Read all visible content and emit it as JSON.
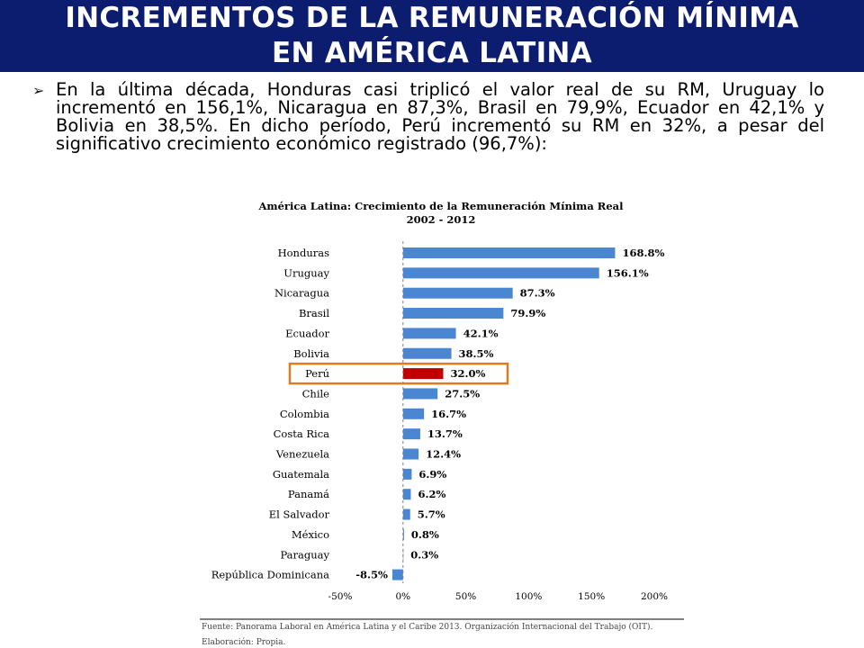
{
  "slide": {
    "title_line1": "INCREMENTOS DE LA REMUNERACIÓN MÍNIMA",
    "title_line2": "EN AMÉRICA LATINA",
    "bullet_icon": "arrow-bullet-icon",
    "bullet_text": "En la última década, Honduras casi triplicó el valor real de su RM, Uruguay lo incrementó en 156,1%, Nicaragua en 87,3%,  Brasil en 79,9%, Ecuador en 42,1% y Bolivia en 38,5%. En dicho período, Perú incrementó su RM en 32%, a pesar del significativo crecimiento económico registrado (96,7%):",
    "header_color": "#0c1c6e"
  },
  "chart_data": {
    "type": "bar",
    "orientation": "horizontal",
    "title": "América Latina: Crecimiento de la Remuneración Mínima Real",
    "subtitle": "2002 - 2012",
    "categories": [
      "Honduras",
      "Uruguay",
      "Nicaragua",
      "Brasil",
      "Ecuador",
      "Bolivia",
      "Perú",
      "Chile",
      "Colombia",
      "Costa Rica",
      "Venezuela",
      "Guatemala",
      "Panamá",
      "El Salvador",
      "México",
      "Paraguay",
      "República Dominicana"
    ],
    "values": [
      168.8,
      156.1,
      87.3,
      79.9,
      42.1,
      38.5,
      32.0,
      27.5,
      16.7,
      13.7,
      12.4,
      6.9,
      6.2,
      5.7,
      0.8,
      0.3,
      -8.5
    ],
    "value_labels": [
      "168.8%",
      "156.1%",
      "87.3%",
      "79.9%",
      "42.1%",
      "38.5%",
      "32.0%",
      "27.5%",
      "16.7%",
      "13.7%",
      "12.4%",
      "6.9%",
      "6.2%",
      "5.7%",
      "0.8%",
      "0.3%",
      "-8.5%"
    ],
    "x_ticks": [
      -50,
      0,
      50,
      100,
      150,
      200
    ],
    "x_tick_labels": [
      "-50%",
      "0%",
      "50%",
      "100%",
      "150%",
      "200%"
    ],
    "xlim": [
      -50,
      200
    ],
    "highlight": "Perú",
    "bar_color": "#4a86d2",
    "highlight_color": "#c00000",
    "highlight_box_color": "#e07b1f",
    "grid": false,
    "source": "Fuente: Panorama Laboral en América Latina y el Caribe 2013. Organización Internacional del Trabajo (OIT).",
    "elaboration": "Elaboración: Propia."
  }
}
